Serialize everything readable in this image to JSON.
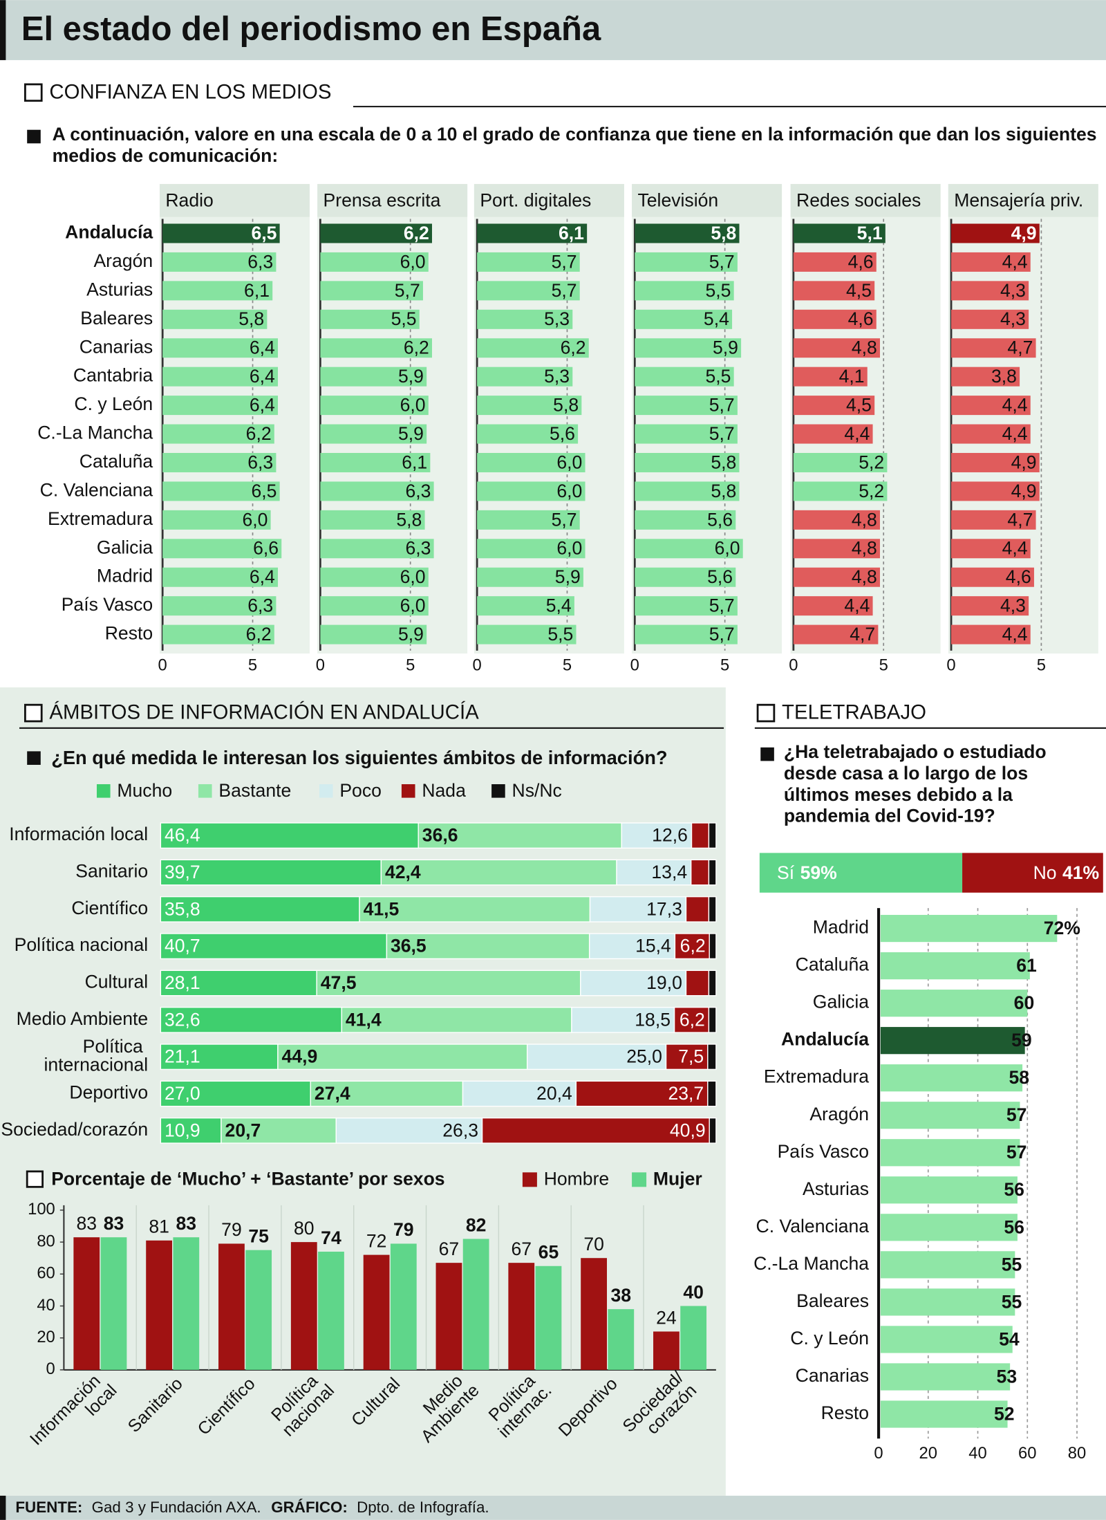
{
  "title": "El estado del periodismo en España",
  "footer": {
    "source_label": "FUENTE:",
    "source": "Gad 3 y Fundación AXA.",
    "credit_label": "GRÁFICO:",
    "credit": "Dpto. de Infografía."
  },
  "chart_data": [
    {
      "type": "panels",
      "section": "CONFIANZA EN LOS MEDIOS",
      "subtitle": "A continuación, valore en una escala de 0 a 10 el grado de confianza que tiene en la información que dan los siguientes medios de comunicación:",
      "categories": [
        "Andalucía",
        "Aragón",
        "Asturias",
        "Baleares",
        "Canarias",
        "Cantabria",
        "C. y León",
        "C.-La Mancha",
        "Cataluña",
        "C. Valenciana",
        "Extremadura",
        "Galicia",
        "Madrid",
        "País Vasco",
        "Resto"
      ],
      "xlim": [
        0,
        8
      ],
      "xticks": [
        0,
        5
      ],
      "highlight_colors": [
        "#1e5a30",
        "#a01212"
      ],
      "series": [
        {
          "name": "Radio",
          "values": [
            6.5,
            6.3,
            6.1,
            5.8,
            6.4,
            6.4,
            6.4,
            6.2,
            6.3,
            6.5,
            6.0,
            6.6,
            6.4,
            6.3,
            6.2
          ],
          "value_labels": [
            "6,5",
            "6,3",
            "6,1",
            "5,8",
            "6,4",
            "6,4",
            "6,4",
            "6,2",
            "6,3",
            "6,5",
            "6,0",
            "6,6",
            "6,4",
            "6,3",
            "6,2"
          ],
          "colors": [
            "#1e5a30",
            "#86e3a0",
            "#86e3a0",
            "#86e3a0",
            "#86e3a0",
            "#86e3a0",
            "#86e3a0",
            "#86e3a0",
            "#86e3a0",
            "#86e3a0",
            "#86e3a0",
            "#86e3a0",
            "#86e3a0",
            "#86e3a0",
            "#86e3a0"
          ]
        },
        {
          "name": "Prensa escrita",
          "values": [
            6.2,
            6.0,
            5.7,
            5.5,
            6.2,
            5.9,
            6.0,
            5.9,
            6.1,
            6.3,
            5.8,
            6.3,
            6.0,
            6.0,
            5.9
          ],
          "value_labels": [
            "6,2",
            "6,0",
            "5,7",
            "5,5",
            "6,2",
            "5,9",
            "6,0",
            "5,9",
            "6,1",
            "6,3",
            "5,8",
            "6,3",
            "6,0",
            "6,0",
            "5,9"
          ],
          "colors": [
            "#1e5a30",
            "#86e3a0",
            "#86e3a0",
            "#86e3a0",
            "#86e3a0",
            "#86e3a0",
            "#86e3a0",
            "#86e3a0",
            "#86e3a0",
            "#86e3a0",
            "#86e3a0",
            "#86e3a0",
            "#86e3a0",
            "#86e3a0",
            "#86e3a0"
          ]
        },
        {
          "name": "Port. digitales",
          "values": [
            6.1,
            5.7,
            5.7,
            5.3,
            6.2,
            5.3,
            5.8,
            5.6,
            6.0,
            6.0,
            5.7,
            6.0,
            5.9,
            5.4,
            5.5
          ],
          "value_labels": [
            "6,1",
            "5,7",
            "5,7",
            "5,3",
            "6,2",
            "5,3",
            "5,8",
            "5,6",
            "6,0",
            "6,0",
            "5,7",
            "6,0",
            "5,9",
            "5,4",
            "5,5"
          ],
          "colors": [
            "#1e5a30",
            "#86e3a0",
            "#86e3a0",
            "#86e3a0",
            "#86e3a0",
            "#86e3a0",
            "#86e3a0",
            "#86e3a0",
            "#86e3a0",
            "#86e3a0",
            "#86e3a0",
            "#86e3a0",
            "#86e3a0",
            "#86e3a0",
            "#86e3a0"
          ]
        },
        {
          "name": "Televisión",
          "values": [
            5.8,
            5.7,
            5.5,
            5.4,
            5.9,
            5.5,
            5.7,
            5.7,
            5.8,
            5.8,
            5.6,
            6.0,
            5.6,
            5.7,
            5.7
          ],
          "value_labels": [
            "5,8",
            "5,7",
            "5,5",
            "5,4",
            "5,9",
            "5,5",
            "5,7",
            "5,7",
            "5,8",
            "5,8",
            "5,6",
            "6,0",
            "5,6",
            "5,7",
            "5,7"
          ],
          "colors": [
            "#1e5a30",
            "#86e3a0",
            "#86e3a0",
            "#86e3a0",
            "#86e3a0",
            "#86e3a0",
            "#86e3a0",
            "#86e3a0",
            "#86e3a0",
            "#86e3a0",
            "#86e3a0",
            "#86e3a0",
            "#86e3a0",
            "#86e3a0",
            "#86e3a0"
          ]
        },
        {
          "name": "Redes sociales",
          "values": [
            5.1,
            4.6,
            4.5,
            4.6,
            4.8,
            4.1,
            4.5,
            4.4,
            5.2,
            5.2,
            4.8,
            4.8,
            4.8,
            4.4,
            4.7
          ],
          "value_labels": [
            "5,1",
            "4,6",
            "4,5",
            "4,6",
            "4,8",
            "4,1",
            "4,5",
            "4,4",
            "5,2",
            "5,2",
            "4,8",
            "4,8",
            "4,8",
            "4,4",
            "4,7"
          ],
          "colors": [
            "#1e5a30",
            "#e05c5c",
            "#e05c5c",
            "#e05c5c",
            "#e05c5c",
            "#e05c5c",
            "#e05c5c",
            "#e05c5c",
            "#86e3a0",
            "#86e3a0",
            "#e05c5c",
            "#e05c5c",
            "#e05c5c",
            "#e05c5c",
            "#e05c5c"
          ]
        },
        {
          "name": "Mensajería priv.",
          "values": [
            4.9,
            4.4,
            4.3,
            4.3,
            4.7,
            3.8,
            4.4,
            4.4,
            4.9,
            4.9,
            4.7,
            4.4,
            4.6,
            4.3,
            4.4
          ],
          "value_labels": [
            "4,9",
            "4,4",
            "4,3",
            "4,3",
            "4,7",
            "3,8",
            "4,4",
            "4,4",
            "4,9",
            "4,9",
            "4,7",
            "4,4",
            "4,6",
            "4,3",
            "4,4"
          ],
          "colors": [
            "#a01212",
            "#e05c5c",
            "#e05c5c",
            "#e05c5c",
            "#e05c5c",
            "#e05c5c",
            "#e05c5c",
            "#e05c5c",
            "#e05c5c",
            "#e05c5c",
            "#e05c5c",
            "#e05c5c",
            "#e05c5c",
            "#e05c5c",
            "#e05c5c"
          ]
        }
      ]
    },
    {
      "type": "stacked",
      "section": "ÁMBITOS DE INFORMACIÓN EN ANDALUCÍA",
      "subtitle": "¿En qué medida le interesan los siguientes ámbitos de información?",
      "categories": [
        "Información local",
        "Sanitario",
        "Científico",
        "Política nacional",
        "Cultural",
        "Medio Ambiente",
        "Política internacional",
        "Deportivo",
        "Sociedad/corazón"
      ],
      "xlim": [
        0,
        100
      ],
      "series": [
        {
          "name": "Mucho",
          "color": "#3fcf6e",
          "values": [
            46.4,
            39.7,
            35.8,
            40.7,
            28.1,
            32.6,
            21.1,
            27.0,
            10.9
          ],
          "value_labels": [
            "46,4",
            "39,7",
            "35,8",
            "40,7",
            "28,1",
            "32,6",
            "21,1",
            "27,0",
            "10,9"
          ]
        },
        {
          "name": "Bastante",
          "color": "#8fe6a6",
          "values": [
            36.6,
            42.4,
            41.5,
            36.5,
            47.5,
            41.4,
            44.9,
            27.4,
            20.7
          ],
          "value_labels": [
            "36,6",
            "42,4",
            "41,5",
            "36,5",
            "47,5",
            "41,4",
            "44,9",
            "27,4",
            "20,7"
          ]
        },
        {
          "name": "Poco",
          "color": "#d2ecef",
          "values": [
            12.6,
            13.4,
            17.3,
            15.4,
            19.0,
            18.5,
            25.0,
            20.4,
            26.3
          ],
          "value_labels": [
            "12,6",
            "13,4",
            "17,3",
            "15,4",
            "19,0",
            "18,5",
            "25,0",
            "20,4",
            "26,3"
          ]
        },
        {
          "name": "Nada",
          "color": "#a01212",
          "values": [
            3.1,
            3.2,
            4.1,
            6.2,
            4.1,
            6.2,
            7.5,
            23.7,
            40.9
          ],
          "value_labels": [
            null,
            null,
            null,
            "6,2",
            null,
            "6,2",
            "7,5",
            "23,7",
            "40,9"
          ]
        },
        {
          "name": "Ns/Nc",
          "color": "#111111",
          "values": [
            1.3,
            1.3,
            1.3,
            1.2,
            1.3,
            1.3,
            1.5,
            1.5,
            1.2
          ]
        }
      ]
    },
    {
      "type": "grouped",
      "title": "Porcentaje de ‘Mucho’ + ‘Bastante’ por sexos",
      "categories": [
        "Información local",
        "Sanitario",
        "Científico",
        "Política nacional",
        "Cultural",
        "Medio Ambiente",
        "Política internac.",
        "Deportivo",
        "Sociedad/corazón"
      ],
      "ylim": [
        0,
        100
      ],
      "yticks": [
        0,
        20,
        40,
        60,
        80,
        100
      ],
      "series": [
        {
          "name": "Hombre",
          "color": "#a01212",
          "values": [
            83,
            81,
            79,
            80,
            72,
            67,
            67,
            70,
            24
          ]
        },
        {
          "name": "Mujer",
          "color": "#5fd68a",
          "values": [
            83,
            83,
            75,
            74,
            79,
            82,
            65,
            38,
            40
          ]
        }
      ]
    },
    {
      "type": "stacked",
      "section": "TELETRABAJO",
      "subtitle": "¿Ha teletrabajado o estudiado desde casa a lo largo de los últimos meses debido a la pandemia del Covid-19?",
      "xlim": [
        0,
        100
      ],
      "series": [
        {
          "name": "Sí",
          "color": "#5fd68a",
          "values": [
            59
          ],
          "value_labels": [
            "59%"
          ]
        },
        {
          "name": "No",
          "color": "#a01212",
          "values": [
            41
          ],
          "value_labels": [
            "41%"
          ]
        }
      ]
    },
    {
      "type": "bar",
      "categories": [
        "Madrid",
        "Cataluña",
        "Galicia",
        "Andalucía",
        "Extremadura",
        "Aragón",
        "País Vasco",
        "Asturias",
        "C. Valenciana",
        "C.-La Mancha",
        "Baleares",
        "C. y León",
        "Canarias",
        "Resto"
      ],
      "values": [
        72,
        61,
        60,
        59,
        58,
        57,
        57,
        56,
        56,
        55,
        55,
        54,
        53,
        52
      ],
      "value_labels": [
        "72%",
        "61",
        "60",
        "59",
        "58",
        "57",
        "57",
        "56",
        "56",
        "55",
        "55",
        "54",
        "53",
        "52"
      ],
      "colors": [
        "#8fe6a6",
        "#8fe6a6",
        "#8fe6a6",
        "#1e5a30",
        "#8fe6a6",
        "#8fe6a6",
        "#8fe6a6",
        "#8fe6a6",
        "#8fe6a6",
        "#8fe6a6",
        "#8fe6a6",
        "#8fe6a6",
        "#8fe6a6",
        "#8fe6a6"
      ],
      "highlight_colors": [
        "#1e5a30"
      ],
      "xlim": [
        0,
        80
      ],
      "xticks": [
        0,
        20,
        40,
        60,
        80
      ]
    }
  ]
}
